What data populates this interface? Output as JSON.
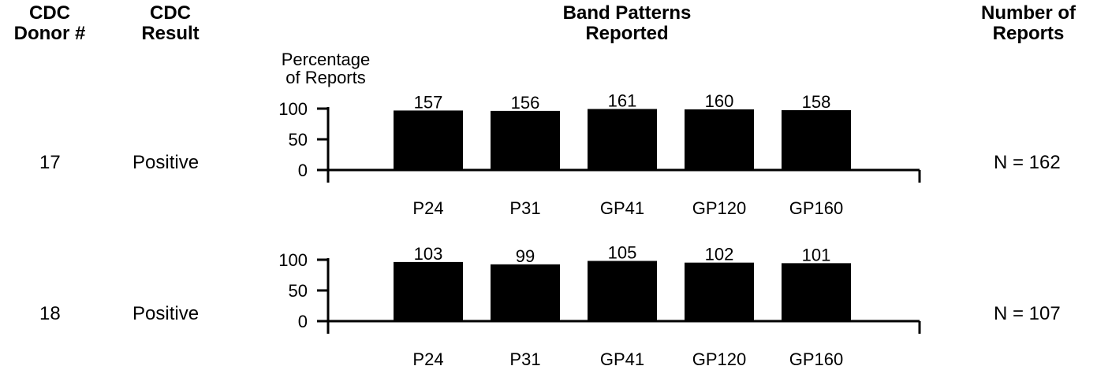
{
  "headers": {
    "donor": [
      "CDC",
      "Donor #"
    ],
    "result": [
      "CDC",
      "Result"
    ],
    "bands": [
      "Band Patterns",
      "Reported"
    ],
    "reports": [
      "Number of",
      "Reports"
    ]
  },
  "ylabel": [
    "Percentage",
    "of Reports"
  ],
  "colors": {
    "bar": "#000000",
    "axis": "#000000"
  },
  "chart_data": [
    {
      "type": "bar",
      "donor": "17",
      "result": "Positive",
      "n_label": "N = 162",
      "n": 162,
      "categories": [
        "P24",
        "P31",
        "GP41",
        "GP120",
        "GP160"
      ],
      "counts": [
        157,
        156,
        161,
        160,
        158
      ],
      "values": [
        96.9,
        96.3,
        99.4,
        98.8,
        97.5
      ],
      "ylim": [
        0,
        100
      ],
      "yticks": [
        0,
        50,
        100
      ]
    },
    {
      "type": "bar",
      "donor": "18",
      "result": "Positive",
      "n_label": "N = 107",
      "n": 107,
      "categories": [
        "P24",
        "P31",
        "GP41",
        "GP120",
        "GP160"
      ],
      "counts": [
        103,
        99,
        105,
        102,
        101
      ],
      "values": [
        96.3,
        92.5,
        98.1,
        95.3,
        94.4
      ],
      "ylim": [
        0,
        100
      ],
      "yticks": [
        0,
        50,
        100
      ]
    }
  ]
}
